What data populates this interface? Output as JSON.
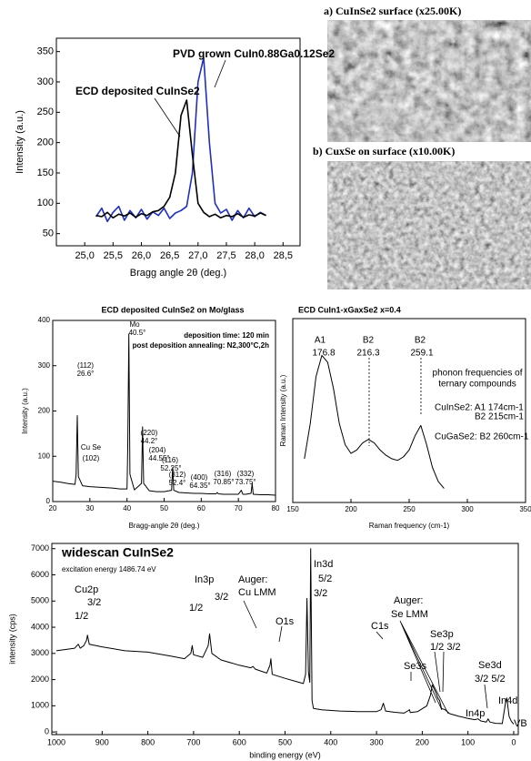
{
  "chart_data": [
    {
      "type": "line",
      "x": [
        25.2,
        25.3,
        25.4,
        25.5,
        25.6,
        25.7,
        25.8,
        25.9,
        26.0,
        26.1,
        26.2,
        26.3,
        26.4,
        26.5,
        26.6,
        26.7,
        26.8,
        26.9,
        27.0,
        27.1,
        27.2,
        27.3,
        27.4,
        27.5,
        27.6,
        27.7,
        27.8,
        27.9,
        28.0,
        28.1,
        28.2
      ],
      "series": [
        {
          "name": "PVD grown CuIn0.88Ga0.12Se2",
          "color": "#1f2fc0",
          "values": [
            78,
            92,
            70,
            85,
            95,
            72,
            88,
            76,
            90,
            74,
            86,
            80,
            92,
            75,
            84,
            88,
            95,
            150,
            300,
            340,
            200,
            100,
            84,
            90,
            72,
            88,
            76,
            92,
            78,
            85,
            80
          ]
        },
        {
          "name": "ECD deposited CuInSe2",
          "color": "#000000",
          "values": [
            80,
            78,
            85,
            76,
            82,
            79,
            84,
            77,
            83,
            80,
            86,
            88,
            95,
            110,
            150,
            245,
            270,
            180,
            100,
            85,
            78,
            82,
            76,
            80,
            78,
            83,
            77,
            81,
            79,
            84,
            80
          ]
        }
      ],
      "xlabel": "Bragg angle 2θ (deg.)",
      "ylabel": "Intensity (a.u.)",
      "xlim": [
        24.5,
        28.8
      ],
      "ylim": [
        30,
        372
      ],
      "xticks": [
        {
          "value": 25,
          "label": "25,0"
        },
        {
          "value": 25.5,
          "label": "25,5"
        },
        {
          "value": 26,
          "label": "26,0"
        },
        {
          "value": 26.5,
          "label": "26,5"
        },
        {
          "value": 27,
          "label": "27,0"
        },
        {
          "value": 27.5,
          "label": "27,5"
        },
        {
          "value": 28,
          "label": "28,0"
        },
        {
          "value": 28.5,
          "label": "28,5"
        }
      ],
      "yticks": [
        50,
        100,
        150,
        200,
        250,
        300,
        350
      ]
    },
    {
      "type": "line",
      "title": "ECD deposited CuInSe2 on Mo/glass",
      "x": [
        20,
        22,
        24,
        26,
        26.3,
        26.6,
        26.9,
        28,
        30,
        32,
        34,
        36,
        38,
        40,
        40.2,
        40.5,
        40.8,
        42,
        43.9,
        44.2,
        44.5,
        46,
        48,
        50,
        52,
        52.3,
        52.6,
        54,
        56,
        58,
        60,
        62,
        64,
        64.3,
        64.6,
        66,
        68,
        70,
        70.8,
        71.2,
        72,
        73.4,
        73.7,
        74,
        76,
        78,
        80
      ],
      "series": [
        {
          "color": "#000000",
          "values": [
            45,
            43,
            40,
            38,
            60,
            190,
            55,
            35,
            33,
            32,
            31,
            30,
            28,
            28,
            120,
            370,
            60,
            26,
            40,
            165,
            40,
            24,
            22,
            22,
            25,
            75,
            25,
            20,
            19,
            18,
            18,
            17,
            17,
            20,
            17,
            16,
            16,
            16,
            25,
            16,
            16,
            18,
            40,
            16,
            15,
            15,
            14
          ]
        }
      ],
      "xlabel": "Bragg-angle 2θ (deg.)",
      "ylabel": "Intensity (a.u.)",
      "xlim": [
        20,
        80
      ],
      "ylim": [
        0,
        400
      ],
      "xticks": [
        20,
        30,
        40,
        50,
        60,
        70,
        80
      ],
      "yticks": [
        0,
        100,
        200,
        300,
        400
      ],
      "annotations": [
        {
          "text": "(112)",
          "color": "#000000"
        },
        {
          "text": "26.6°",
          "color": "#d62020"
        },
        {
          "text": "Mo",
          "color": "#000000"
        },
        {
          "text": "40.5°",
          "color": "#d62020"
        },
        {
          "text": "(220)",
          "color": "#000000"
        },
        {
          "text": "44.2°",
          "color": "#d62020"
        },
        {
          "text": "(204)",
          "color": "#000000"
        },
        {
          "text": "44.55°",
          "color": "#d62020"
        },
        {
          "text": "(116)",
          "color": "#000000"
        },
        {
          "text": "52.25°",
          "color": "#d62020"
        },
        {
          "text": "(312)",
          "color": "#000000"
        },
        {
          "text": "52.4°",
          "color": "#d62020"
        },
        {
          "text": "(400)",
          "color": "#000000"
        },
        {
          "text": "64.35°",
          "color": "#d62020"
        },
        {
          "text": "(316)",
          "color": "#000000"
        },
        {
          "text": "70.85°",
          "color": "#d62020"
        },
        {
          "text": "(332)",
          "color": "#000000"
        },
        {
          "text": "73.75°",
          "color": "#d62020"
        },
        {
          "text": "Cu Se",
          "color": "#000000"
        },
        {
          "text": "(102)",
          "color": "#000000"
        },
        {
          "text": "deposition time: 120 min",
          "color": "#000000"
        },
        {
          "text": "post deposition annealing: N2,300°C,2h",
          "color": "#000000"
        }
      ]
    },
    {
      "type": "line",
      "title": "ECD CuIn1-xGaxSe2 x=0.4",
      "x": [
        160,
        165,
        170,
        175,
        180,
        185,
        190,
        195,
        200,
        205,
        210,
        215,
        220,
        225,
        230,
        235,
        240,
        245,
        250,
        255,
        260,
        265,
        270,
        275,
        280
      ],
      "series": [
        {
          "color": "#000000",
          "values": [
            0.25,
            0.45,
            0.72,
            0.84,
            0.8,
            0.65,
            0.45,
            0.33,
            0.28,
            0.3,
            0.34,
            0.36,
            0.34,
            0.3,
            0.27,
            0.25,
            0.24,
            0.26,
            0.3,
            0.38,
            0.44,
            0.33,
            0.2,
            0.12,
            0.08
          ]
        }
      ],
      "xlabel": "Raman frequency (cm-1)",
      "ylabel": "Raman Intensity (a.u.)",
      "xlim": [
        150,
        350
      ],
      "ylim": [
        0,
        1.05
      ],
      "xticks": [
        150,
        200,
        250,
        300,
        350
      ],
      "annotations": [
        {
          "text": "A1",
          "color": "#000000"
        },
        {
          "text": "176.8",
          "color": "#d62020"
        },
        {
          "text": "B2",
          "color": "#000000"
        },
        {
          "text": "216.3",
          "color": "#d62020"
        },
        {
          "text": "B2",
          "color": "#000000"
        },
        {
          "text": "259.1",
          "color": "#d62020"
        },
        {
          "text": "phonon frequencies of",
          "color": "#000000"
        },
        {
          "text": "ternary compounds",
          "color": "#000000"
        },
        {
          "text": "CuInSe2: A1 174cm-1",
          "color": "#000000"
        },
        {
          "text": "B2 215cm-1",
          "color": "#000000"
        },
        {
          "text": "CuGaSe2: B2 260cm-1",
          "color": "#000000"
        }
      ]
    },
    {
      "type": "line",
      "title": "widescan CuInSe2",
      "subtitle": "excitation energy 1486.74 eV",
      "x": [
        1000,
        980,
        960,
        955,
        952,
        948,
        940,
        934,
        932,
        928,
        900,
        850,
        800,
        750,
        720,
        706,
        703,
        700,
        680,
        668,
        665,
        660,
        640,
        600,
        575,
        570,
        565,
        540,
        533,
        531,
        528,
        500,
        470,
        460,
        455,
        452,
        449,
        446,
        444,
        441,
        438,
        420,
        380,
        340,
        300,
        290,
        285,
        280,
        260,
        240,
        230,
        228,
        226,
        210,
        190,
        182,
        178,
        170,
        166,
        162,
        158,
        150,
        140,
        120,
        100,
        85,
        78,
        72,
        60,
        56,
        52,
        40,
        25,
        18,
        15,
        10,
        5,
        0
      ],
      "series": [
        {
          "color": "#000000",
          "values": [
            3100,
            3150,
            3200,
            3300,
            3350,
            3200,
            3300,
            3500,
            3700,
            3350,
            3250,
            3100,
            3050,
            2900,
            2800,
            3000,
            3300,
            2950,
            2850,
            3300,
            3750,
            3000,
            2750,
            2550,
            2450,
            2500,
            2400,
            2250,
            2550,
            2800,
            2200,
            2050,
            1900,
            1850,
            2200,
            5100,
            2300,
            1900,
            7000,
            1200,
            900,
            850,
            800,
            780,
            780,
            850,
            1100,
            800,
            750,
            720,
            820,
            850,
            740,
            780,
            1000,
            1400,
            1800,
            1500,
            1300,
            1200,
            900,
            850,
            700,
            600,
            520,
            470,
            500,
            420,
            380,
            500,
            380,
            330,
            320,
            1100,
            1300,
            600,
            400,
            300
          ]
        }
      ],
      "xlabel": "binding energy (eV)",
      "ylabel": "intensity (cps)",
      "xlim": [
        1010,
        -10
      ],
      "ylim": [
        -100,
        7200
      ],
      "xticks": [
        1000,
        900,
        800,
        700,
        600,
        500,
        400,
        300,
        200,
        100,
        0
      ],
      "yticks": [
        0,
        1000,
        2000,
        3000,
        4000,
        5000,
        6000,
        7000
      ],
      "annotations": [
        {
          "text": "Cu2p",
          "color": "#d62020"
        },
        {
          "text": "3/2",
          "color": "#d62020"
        },
        {
          "text": "1/2",
          "color": "#d62020"
        },
        {
          "text": "In3p",
          "color": "#000000"
        },
        {
          "text": "1/2",
          "color": "#000000"
        },
        {
          "text": "3/2",
          "color": "#000000"
        },
        {
          "text": "Auger:",
          "color": "#000000"
        },
        {
          "text": "Cu LMM",
          "color": "#000000"
        },
        {
          "text": "O1s",
          "color": "#d62020"
        },
        {
          "text": "In3d",
          "color": "#d62020"
        },
        {
          "text": "5/2",
          "color": "#d62020"
        },
        {
          "text": "3/2",
          "color": "#d62020"
        },
        {
          "text": "C1s",
          "color": "#d62020"
        },
        {
          "text": "Auger:",
          "color": "#000000"
        },
        {
          "text": "Se LMM",
          "color": "#000000"
        },
        {
          "text": "Se3p",
          "color": "#000000"
        },
        {
          "text": "1/2 3/2",
          "color": "#000000"
        },
        {
          "text": "Se3s",
          "color": "#000000"
        },
        {
          "text": "Se3d",
          "color": "#d62020"
        },
        {
          "text": "3/2 5/2",
          "color": "#d62020"
        },
        {
          "text": "In4p",
          "color": "#000000"
        },
        {
          "text": "In4d",
          "color": "#000000"
        },
        {
          "text": "VB",
          "color": "#000000"
        }
      ]
    }
  ],
  "images": [
    {
      "caption": "a) CuInSe2 surface (x25.00K)"
    },
    {
      "caption": "b) CuxSe on surface (x10.00K)"
    }
  ]
}
